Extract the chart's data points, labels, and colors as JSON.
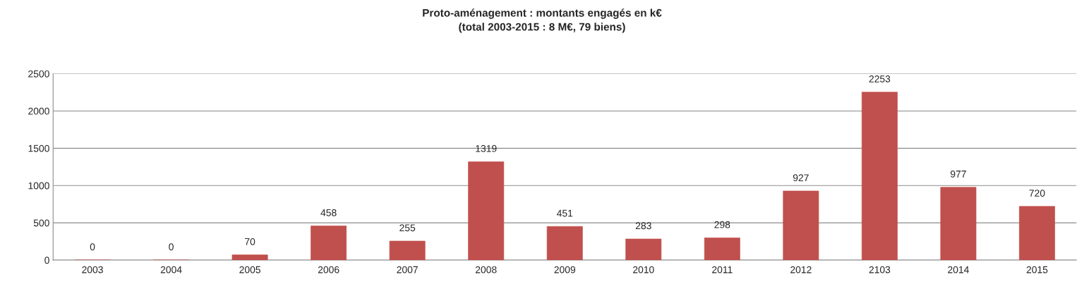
{
  "chart_data": {
    "type": "bar",
    "title": "Proto-aménagement : montants engagés en k€\n(total 2003-2015 : 8 M€, 79 biens)",
    "categories": [
      "2003",
      "2004",
      "2005",
      "2006",
      "2007",
      "2008",
      "2009",
      "2010",
      "2011",
      "2012",
      "2103",
      "2014",
      "2015"
    ],
    "values": [
      0,
      0,
      70,
      458,
      255,
      1319,
      451,
      283,
      298,
      927,
      2253,
      977,
      720
    ],
    "color": "#c0504d",
    "ylim": [
      0,
      2500
    ],
    "yticks": [
      0,
      500,
      1000,
      1500,
      2000,
      2500
    ],
    "grid": "y",
    "data_labels": true
  }
}
